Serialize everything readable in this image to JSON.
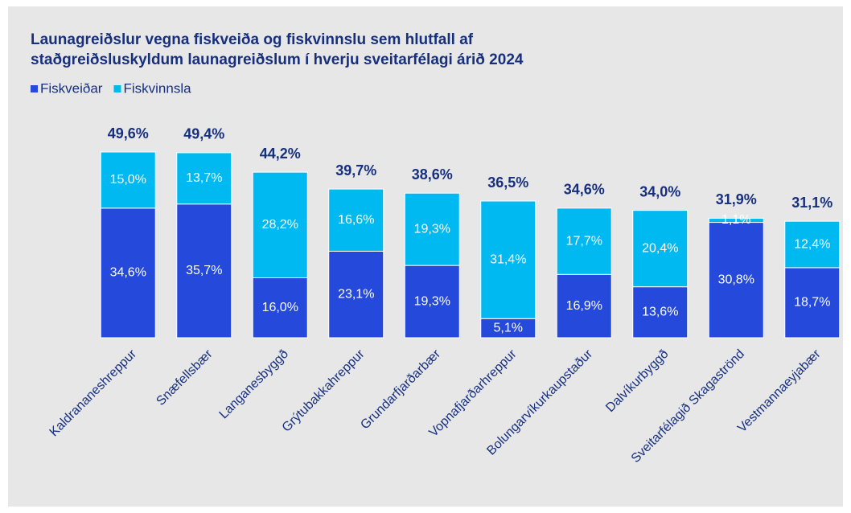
{
  "chart_data": {
    "type": "stacked_bar",
    "title": [
      "Launagreiðslur vegna fiskveiða og fiskvinnslu sem hlutfall af",
      "staðgreiðsluskyldum launagreiðslum í hverju sveitarfélagi árið 2024"
    ],
    "categories": [
      "Kaldrananeshreppur",
      "Snæfellsbær",
      "Langanesbyggð",
      "Grýtubakkahreppur",
      "Grundarfjarðarbær",
      "Vopnafjarðarhreppur",
      "Bolungarvíkurkaupstaður",
      "Dalvíkurbyggð",
      "Sveitarfélagið Skagaströnd",
      "Vestmannaeyjabær"
    ],
    "series": [
      {
        "name": "Fiskveiðar",
        "color": "#2449db",
        "values": [
          34.6,
          35.7,
          16.0,
          23.1,
          19.3,
          5.1,
          16.9,
          13.6,
          30.8,
          18.7
        ],
        "value_labels": [
          "34,6%",
          "35,7%",
          "16,0%",
          "23,1%",
          "19,3%",
          "5,1%",
          "16,9%",
          "13,6%",
          "30,8%",
          "18,7%"
        ]
      },
      {
        "name": "Fiskvinnsla",
        "color": "#00b9f1",
        "values": [
          15.0,
          13.7,
          28.2,
          16.6,
          19.3,
          31.4,
          17.7,
          20.4,
          1.1,
          12.4
        ],
        "value_labels": [
          "15,0%",
          "13,7%",
          "28,2%",
          "16,6%",
          "19,3%",
          "31,4%",
          "17,7%",
          "20,4%",
          "1,1%",
          "12,4%"
        ]
      }
    ],
    "totals": [
      49.6,
      49.4,
      44.2,
      39.7,
      38.6,
      36.5,
      34.6,
      34.0,
      31.9,
      31.1
    ],
    "total_labels": [
      "49,6%",
      "49,4%",
      "44,2%",
      "39,7%",
      "38,6%",
      "36,5%",
      "34,6%",
      "34,0%",
      "31,9%",
      "31,1%"
    ],
    "legend": "top-left"
  }
}
